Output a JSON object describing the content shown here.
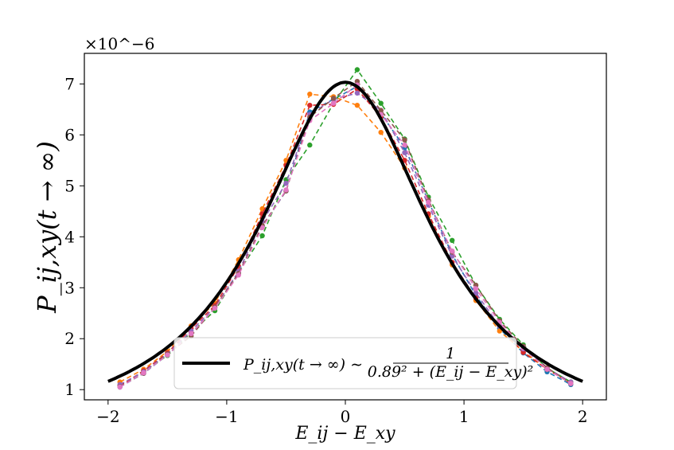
{
  "chart_data": {
    "type": "line",
    "xlabel": "E_ij − E_xy",
    "ylabel": "P_ij,xy(t → ∞)",
    "offset_label": "×10^−6",
    "xlim": [
      -2.2,
      2.2
    ],
    "ylim": [
      0.8,
      7.6
    ],
    "xticks": [
      -2,
      -1,
      0,
      1,
      2
    ],
    "xtick_labels": [
      "−2",
      "−1",
      "0",
      "1",
      "2"
    ],
    "yticks": [
      1,
      2,
      3,
      4,
      5,
      6,
      7
    ],
    "ytick_labels": [
      "1",
      "2",
      "3",
      "4",
      "5",
      "6",
      "7"
    ],
    "grid": false,
    "legend": {
      "placement": "lower-center",
      "label_main": "P_ij,xy(t → ∞) ∼",
      "label_fraction_numerator": "1",
      "label_fraction_denominator": "0.89² + (E_ij − E_xy)²"
    },
    "fit": {
      "name": "P_ij,xy(t → ∞) ∼ 1/(0.89² + (E_ij − E_xy)²)",
      "gamma": 0.89,
      "amplitude": 5.57,
      "x_range": [
        -2,
        2
      ],
      "color": "#000000"
    },
    "x": [
      -1.9,
      -1.7,
      -1.5,
      -1.3,
      -1.1,
      -0.9,
      -0.7,
      -0.5,
      -0.3,
      -0.1,
      0.1,
      0.3,
      0.5,
      0.7,
      0.9,
      1.1,
      1.3,
      1.5,
      1.7,
      1.9
    ],
    "series": [
      {
        "color": "#1f77b4",
        "values": [
          1.05,
          1.32,
          1.68,
          2.1,
          2.6,
          3.27,
          4.2,
          4.9,
          6.45,
          6.7,
          6.95,
          6.42,
          5.75,
          4.7,
          3.65,
          2.85,
          2.2,
          1.72,
          1.35,
          1.1
        ]
      },
      {
        "color": "#ff7f0e",
        "values": [
          1.15,
          1.4,
          1.75,
          2.25,
          2.7,
          3.55,
          4.55,
          5.5,
          6.8,
          6.75,
          6.58,
          6.05,
          5.35,
          4.4,
          3.45,
          2.75,
          2.15,
          1.75,
          1.4,
          1.15
        ]
      },
      {
        "color": "#2ca02c",
        "values": [
          1.08,
          1.35,
          1.67,
          2.12,
          2.55,
          3.3,
          4.02,
          5.12,
          5.8,
          6.62,
          7.28,
          6.62,
          5.92,
          4.78,
          3.93,
          3.05,
          2.38,
          1.88,
          1.42,
          1.15
        ]
      },
      {
        "color": "#d62728",
        "values": [
          1.07,
          1.37,
          1.72,
          2.2,
          2.65,
          3.42,
          4.45,
          5.4,
          6.58,
          6.6,
          6.9,
          6.35,
          5.5,
          4.45,
          3.5,
          2.8,
          2.25,
          1.73,
          1.4,
          1.12
        ]
      },
      {
        "color": "#9467bd",
        "values": [
          1.1,
          1.35,
          1.7,
          2.15,
          2.62,
          3.32,
          4.3,
          5.05,
          6.4,
          6.7,
          6.82,
          6.48,
          5.65,
          4.62,
          3.62,
          2.9,
          2.25,
          1.8,
          1.42,
          1.15
        ]
      },
      {
        "color": "#8c564b",
        "values": [
          1.06,
          1.32,
          1.7,
          2.05,
          2.62,
          3.28,
          4.22,
          4.9,
          6.35,
          6.72,
          7.05,
          6.48,
          5.9,
          4.72,
          3.7,
          3.05,
          2.35,
          1.85,
          1.43,
          1.12
        ]
      },
      {
        "color": "#e377c2",
        "values": [
          1.05,
          1.33,
          1.68,
          2.1,
          2.6,
          3.25,
          4.18,
          4.92,
          6.28,
          6.62,
          6.98,
          6.4,
          5.8,
          4.68,
          3.72,
          2.98,
          2.32,
          1.82,
          1.4,
          1.12
        ]
      }
    ]
  }
}
